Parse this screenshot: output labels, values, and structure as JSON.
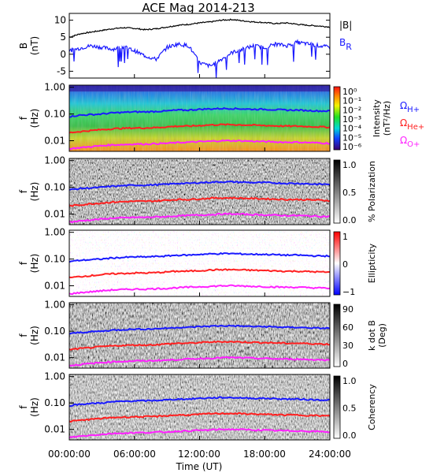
{
  "title": "ACE Mag 2014-213",
  "x_axis": {
    "label": "Time (UT)",
    "ticks": [
      "00:00:00",
      "06:00:00",
      "12:00:00",
      "18:00:00",
      "24:00:00"
    ],
    "range_hours": [
      0,
      24
    ]
  },
  "legend": {
    "top": [
      {
        "label": "|B|",
        "sub": "",
        "color": "#000000"
      },
      {
        "label": "B",
        "sub": "R",
        "color": "#1a1aff"
      }
    ],
    "gyro": [
      {
        "label": "Ω",
        "sub": "H+",
        "color": "#1a1aff"
      },
      {
        "label": "Ω",
        "sub": "He+",
        "color": "#ff2020"
      },
      {
        "label": "Ω",
        "sub": "O+",
        "color": "#ff20ff"
      }
    ]
  },
  "panels": [
    {
      "id": "b",
      "ylabel": "B",
      "yunit": "(nT)",
      "yticks": [
        "10",
        "5",
        "0",
        "-5"
      ]
    },
    {
      "id": "intensity",
      "ylabel": "f",
      "yunit": "(Hz)",
      "yticks": [
        "1.00",
        "0.10",
        "0.01"
      ],
      "colorbar": {
        "label": "Intensity",
        "unit": "(nT²/Hz)",
        "scheme": "rainbow",
        "ticks": [
          "10⁰",
          "10⁻¹",
          "10⁻²",
          "10⁻³",
          "10⁻⁴",
          "10⁻⁵",
          "10⁻⁶"
        ]
      }
    },
    {
      "id": "polarization",
      "ylabel": "f",
      "yunit": "(Hz)",
      "yticks": [
        "1.00",
        "0.10",
        "0.01"
      ],
      "colorbar": {
        "label": "% Polarization",
        "unit": "",
        "scheme": "gray",
        "ticks": [
          "1.0",
          "0.5",
          "0.0"
        ]
      }
    },
    {
      "id": "ellipticity",
      "ylabel": "f",
      "yunit": "(Hz)",
      "yticks": [
        "1.00",
        "0.10",
        "0.01"
      ],
      "colorbar": {
        "label": "Ellipticity",
        "unit": "",
        "scheme": "redblue",
        "ticks": [
          "1",
          "0",
          "−1"
        ]
      }
    },
    {
      "id": "kdotb",
      "ylabel": "f",
      "yunit": "(Hz)",
      "yticks": [
        "1.00",
        "0.10",
        "0.01"
      ],
      "colorbar": {
        "label": "k dot B",
        "unit": "(Deg)",
        "scheme": "gray",
        "ticks": [
          "90",
          "60",
          "30",
          "0"
        ]
      }
    },
    {
      "id": "coherency",
      "ylabel": "f",
      "yunit": "(Hz)",
      "yticks": [
        "1.00",
        "0.10",
        "0.01"
      ],
      "colorbar": {
        "label": "Coherency",
        "unit": "",
        "scheme": "gray",
        "ticks": [
          "1.0",
          "0.5",
          "0.0"
        ]
      }
    }
  ],
  "chart_data": {
    "type": "line",
    "x_hours": [
      0,
      1,
      2,
      3,
      4,
      5,
      6,
      7,
      8,
      9,
      10,
      11,
      12,
      13,
      14,
      15,
      16,
      17,
      18,
      19,
      20,
      21,
      22,
      23,
      24
    ],
    "b_panel": {
      "ylim": [
        -7,
        12
      ],
      "series": [
        {
          "name": "|B|",
          "color": "#000000",
          "values": [
            5.0,
            6.0,
            6.5,
            7.0,
            7.5,
            7.8,
            7.6,
            7.2,
            7.5,
            8.0,
            8.5,
            8.8,
            9.2,
            9.5,
            10.0,
            10.2,
            9.8,
            9.5,
            9.3,
            9.0,
            9.2,
            8.8,
            8.5,
            8.3,
            8.0
          ]
        },
        {
          "name": "B_R",
          "color": "#1a1aff",
          "values": [
            1.0,
            1.8,
            2.5,
            2.0,
            1.5,
            2.2,
            1.0,
            -0.5,
            -1.5,
            2.0,
            3.0,
            2.5,
            -2.5,
            -3.5,
            -1.5,
            0.5,
            1.5,
            2.5,
            2.0,
            3.0,
            2.5,
            3.5,
            3.0,
            2.5,
            2.0
          ]
        }
      ]
    },
    "frequency_panels": {
      "ylim_hz": [
        0.004,
        1.2
      ],
      "ylog": true,
      "series": [
        {
          "name": "Ω_H+",
          "color": "#1a1aff",
          "values": [
            0.08,
            0.09,
            0.095,
            0.1,
            0.11,
            0.115,
            0.12,
            0.12,
            0.125,
            0.13,
            0.14,
            0.14,
            0.15,
            0.155,
            0.16,
            0.16,
            0.155,
            0.15,
            0.15,
            0.145,
            0.14,
            0.14,
            0.135,
            0.13,
            0.13
          ]
        },
        {
          "name": "Ω_He+",
          "color": "#ff2020",
          "values": [
            0.02,
            0.022,
            0.024,
            0.026,
            0.028,
            0.029,
            0.03,
            0.03,
            0.031,
            0.033,
            0.035,
            0.035,
            0.037,
            0.039,
            0.04,
            0.04,
            0.039,
            0.038,
            0.037,
            0.036,
            0.035,
            0.035,
            0.034,
            0.033,
            0.032
          ]
        },
        {
          "name": "Ω_O+",
          "color": "#ff20ff",
          "values": [
            0.005,
            0.0055,
            0.006,
            0.0065,
            0.007,
            0.0072,
            0.0075,
            0.0075,
            0.0078,
            0.008,
            0.0085,
            0.0088,
            0.0092,
            0.0095,
            0.01,
            0.01,
            0.0098,
            0.0095,
            0.0093,
            0.009,
            0.0088,
            0.0088,
            0.0085,
            0.0083,
            0.008
          ]
        }
      ]
    }
  }
}
